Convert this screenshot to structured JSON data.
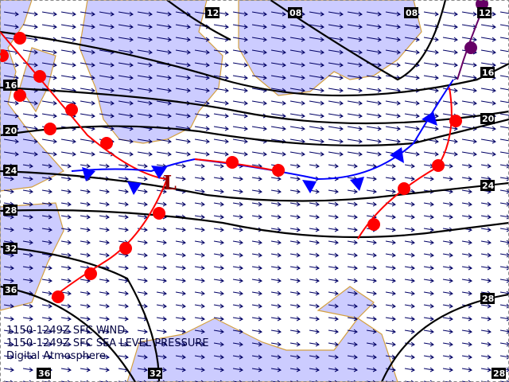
{
  "captions": {
    "line1": "1150-1249Z SFC WIND",
    "line2": "1150-1249Z SFC SEA LEVEL PRESSURE",
    "line3": "Digital Atmosphere"
  },
  "isobar_labels": {
    "top": [
      "12",
      "08",
      "08",
      "12"
    ],
    "left": [
      "16",
      "20",
      "24",
      "28",
      "32",
      "36"
    ],
    "right": [
      "16",
      "20",
      "24",
      "28"
    ],
    "bottom": [
      "36",
      "32",
      "28"
    ]
  },
  "low_marker": "L",
  "colors": {
    "sea": "#ccccff",
    "land": "#ffffff",
    "coast": "#d4a040",
    "isobar": "#000000",
    "cold_front": "#0000ff",
    "warm_front": "#ff0000",
    "occluded_front": "#660066",
    "wind": "#000066",
    "low": "#990000"
  }
}
